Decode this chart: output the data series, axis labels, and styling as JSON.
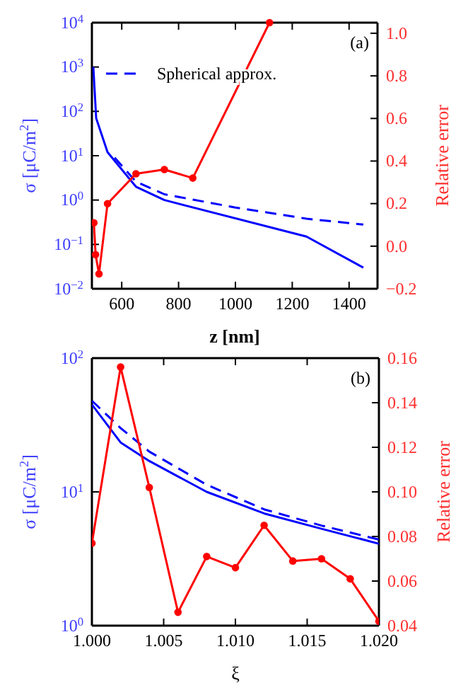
{
  "chart_data": [
    {
      "type": "line",
      "xlabel": "z [nm]",
      "ylabel": "σ [μC/m$^{2}$]",
      "y2label": "Relative error",
      "log": "y",
      "legend": "top left",
      "grid": false,
      "xlim": [
        495,
        1500
      ],
      "xticks": [
        600,
        800,
        1000,
        1200,
        1400
      ],
      "ylim": [
        0.01,
        10000
      ],
      "yticks": [
        {
          "value": 0.01,
          "label": "10$^{−2}$"
        },
        {
          "value": 0.1,
          "label": "10$^{−1}$"
        },
        {
          "value": 1,
          "label": "10$^{0}$"
        },
        {
          "value": 10,
          "label": "10$^{1}$"
        },
        {
          "value": 100,
          "label": "10$^{2}$"
        },
        {
          "value": 1000,
          "label": "10$^{3}$"
        },
        {
          "value": 10000,
          "label": "10$^{4}$"
        }
      ],
      "y2lim": [
        -0.2,
        1.05
      ],
      "y2ticks": [
        {
          "value": -0.2,
          "label": "−0.2"
        },
        {
          "value": 0,
          "label": "0.0"
        },
        {
          "value": 0.2,
          "label": "0.2"
        },
        {
          "value": 0.4,
          "label": "0.4"
        },
        {
          "value": 0.6,
          "label": "0.6"
        },
        {
          "value": 0.8,
          "label": "0.8"
        },
        {
          "value": 1,
          "label": "1.0"
        }
      ],
      "annotations": [
        "(a)"
      ],
      "series": [
        {
          "color": "#0000ff",
          "line_style": "solid",
          "marker": "none",
          "x": [
            500,
            510,
            550,
            650,
            750,
            1250,
            1450
          ],
          "values": [
            1000,
            70,
            12,
            2,
            1,
            0.15,
            0.03
          ]
        },
        {
          "name": "Spherical approx.",
          "color": "#0000ff",
          "line_style": "dashed",
          "marker": "none",
          "x": [
            575,
            650,
            750,
            1000,
            1250,
            1450
          ],
          "values": [
            9,
            2.6,
            1.35,
            0.68,
            0.38,
            0.28
          ]
        },
        {
          "color": "#ff0000",
          "axis": "y2",
          "line_style": "solid",
          "marker": "circle",
          "x": [
            502,
            508,
            520,
            550,
            650,
            750,
            850,
            1120
          ],
          "values": [
            0.11,
            -0.04,
            -0.13,
            0.2,
            0.34,
            0.36,
            0.32,
            1.05
          ]
        }
      ]
    },
    {
      "type": "line",
      "xlabel": "ξ",
      "ylabel": "σ [μC/m$^{2}$]",
      "y2label": "Relative error",
      "log": "y",
      "legend": false,
      "grid": false,
      "xlim": [
        1,
        1.02
      ],
      "xticks": [
        {
          "value": 1,
          "label": "1.000"
        },
        {
          "value": 1.005,
          "label": "1.005"
        },
        {
          "value": 1.01,
          "label": "1.010"
        },
        {
          "value": 1.015,
          "label": "1.015"
        },
        {
          "value": 1.02,
          "label": "1.020"
        }
      ],
      "ylim": [
        1,
        100
      ],
      "yticks": [
        {
          "value": 1,
          "label": "10$^{0}$"
        },
        {
          "value": 10,
          "label": "10$^{1}$"
        },
        {
          "value": 100,
          "label": "10$^{2}$"
        }
      ],
      "y2lim": [
        0.04,
        0.16
      ],
      "y2ticks": [
        {
          "value": 0.04,
          "label": "0.04"
        },
        {
          "value": 0.06,
          "label": "0.06"
        },
        {
          "value": 0.08,
          "label": "0.08"
        },
        {
          "value": 0.1,
          "label": "0.10"
        },
        {
          "value": 0.12,
          "label": "0.12"
        },
        {
          "value": 0.14,
          "label": "0.14"
        },
        {
          "value": 0.16,
          "label": "0.16"
        }
      ],
      "annotations": [
        "(b)"
      ],
      "series": [
        {
          "color": "#0000ff",
          "line_style": "solid",
          "marker": "none",
          "x": [
            1,
            1.002,
            1.004,
            1.008,
            1.012,
            1.016,
            1.02
          ],
          "values": [
            45,
            23.4,
            17,
            10,
            6.9,
            5.3,
            4.1
          ]
        },
        {
          "color": "#0000ff",
          "line_style": "dashed",
          "marker": "none",
          "x": [
            1,
            1.002,
            1.004,
            1.008,
            1.012,
            1.016,
            1.02
          ],
          "values": [
            48,
            30,
            20,
            11.3,
            7.4,
            5.6,
            4.4
          ]
        },
        {
          "color": "#ff0000",
          "axis": "y2",
          "line_style": "solid",
          "marker": "circle",
          "x": [
            1,
            1.002,
            1.004,
            1.006,
            1.008,
            1.01,
            1.012,
            1.014,
            1.016,
            1.018,
            1.02
          ],
          "values": [
            0.077,
            0.156,
            0.102,
            0.046,
            0.071,
            0.066,
            0.085,
            0.069,
            0.07,
            0.061,
            0.042
          ]
        }
      ]
    }
  ]
}
